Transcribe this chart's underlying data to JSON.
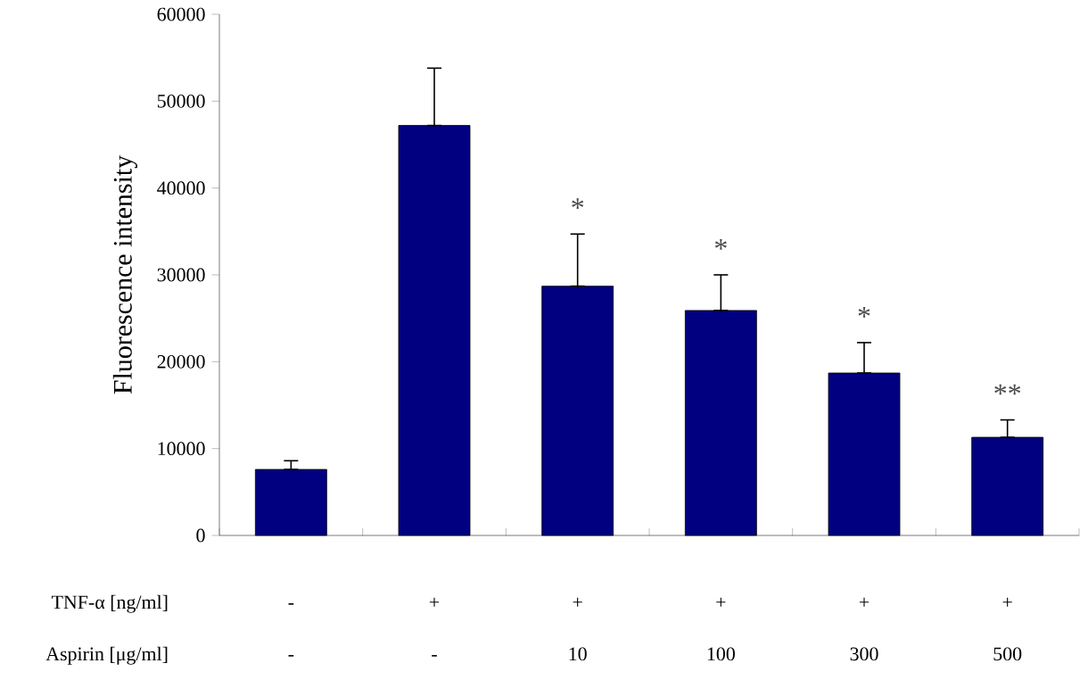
{
  "chart_data": {
    "type": "bar",
    "ylabel": "Fluorescence intensity",
    "xlabel": "TNF-α [ng/ml]",
    "categories": [
      "-",
      "+",
      "+",
      "+",
      "+",
      "+"
    ],
    "values": [
      7600,
      47200,
      28700,
      25900,
      18700,
      11300
    ],
    "errors": [
      [
        7600,
        8600
      ],
      [
        47200,
        53800
      ],
      [
        28700,
        34700
      ],
      [
        25900,
        30000
      ],
      [
        18700,
        22200
      ],
      [
        11300,
        13300
      ]
    ],
    "value_labels": [
      null,
      null,
      "*",
      "*",
      "*",
      "**"
    ],
    "color": "#000080",
    "annotations": [
      "Aspirin [μg/ml]",
      "-",
      "-",
      "10",
      "100",
      "300",
      "500"
    ],
    "ylim": [
      0,
      60000
    ],
    "yticks": [
      0,
      10000,
      20000,
      30000,
      40000,
      50000,
      60000
    ]
  }
}
